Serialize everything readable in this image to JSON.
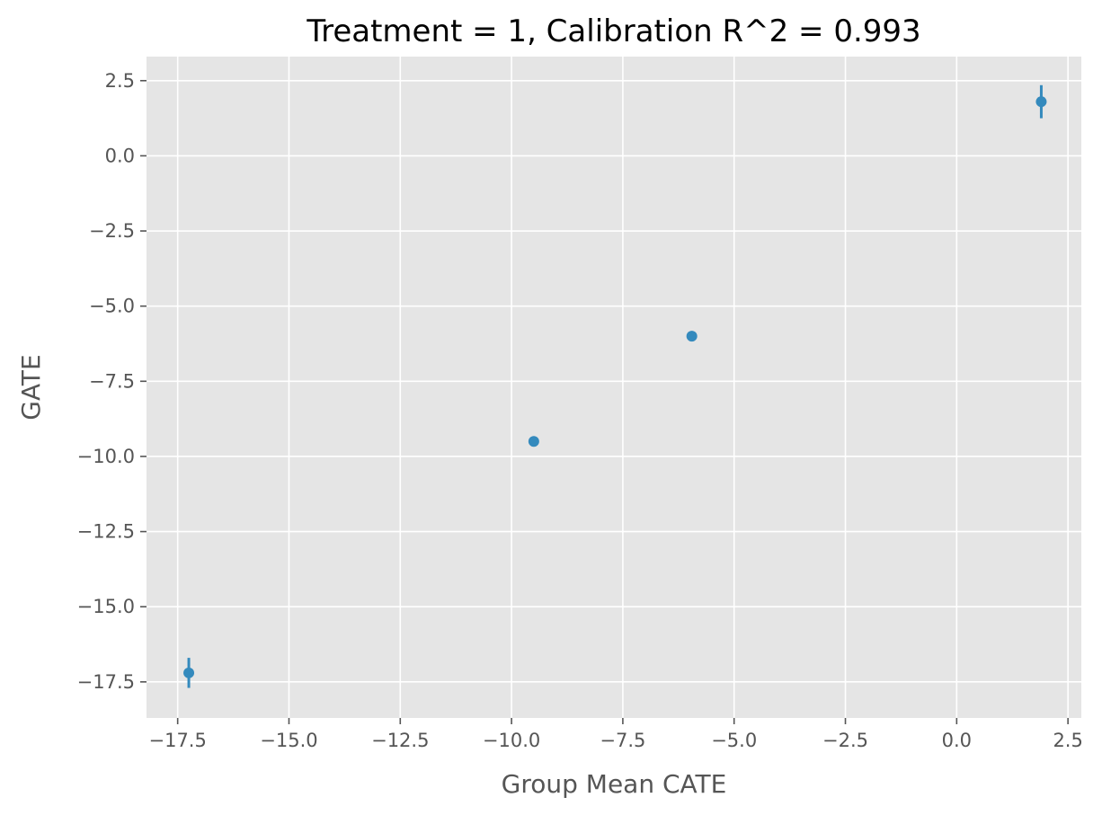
{
  "chart_data": {
    "type": "scatter",
    "title": "Treatment = 1, Calibration R^2 = 0.993",
    "xlabel": "Group Mean CATE",
    "ylabel": "GATE",
    "xlim": [
      -18.2,
      2.8
    ],
    "ylim": [
      -18.7,
      3.3
    ],
    "xticks": [
      -17.5,
      -15.0,
      -12.5,
      -10.0,
      -7.5,
      -5.0,
      -2.5,
      0.0,
      2.5
    ],
    "xtick_labels": [
      "−17.5",
      "−15.0",
      "−12.5",
      "−10.0",
      "−7.5",
      "−5.0",
      "−2.5",
      "0.0",
      "2.5"
    ],
    "yticks": [
      2.5,
      0.0,
      -2.5,
      -5.0,
      -7.5,
      -10.0,
      -12.5,
      -15.0,
      -17.5
    ],
    "ytick_labels": [
      "2.5",
      "0.0",
      "−2.5",
      "−5.0",
      "−7.5",
      "−10.0",
      "−12.5",
      "−15.0",
      "−17.5"
    ],
    "grid": true,
    "colors": {
      "background": "#e5e5e5",
      "grid": "#ffffff",
      "marker": "#348abd"
    },
    "points": [
      {
        "x": -17.25,
        "y": -17.2,
        "yerr": 0.5
      },
      {
        "x": -9.5,
        "y": -9.5,
        "yerr": 0.15
      },
      {
        "x": -5.95,
        "y": -6.0,
        "yerr": 0.15
      },
      {
        "x": 1.9,
        "y": 1.8,
        "yerr": 0.55
      }
    ]
  }
}
